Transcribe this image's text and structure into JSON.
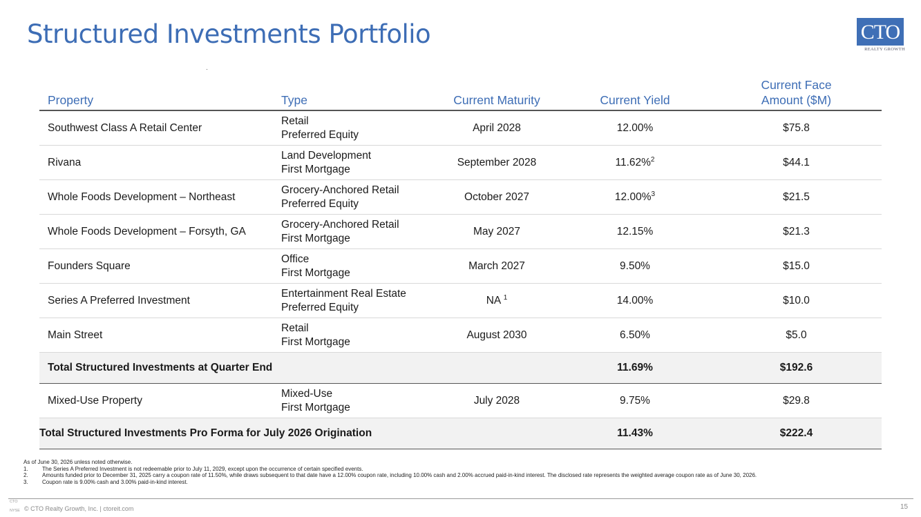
{
  "title": "Structured Investments Portfolio",
  "logo": {
    "main": "CTO",
    "sub": "REALTY GROWTH"
  },
  "table": {
    "headers": {
      "property": "Property",
      "type": "Type",
      "maturity": "Current Maturity",
      "yield": "Current Yield",
      "face_line1": "Current Face",
      "face_line2": "Amount ($M)"
    },
    "rows": [
      {
        "property": "Southwest Class A Retail Center",
        "type1": "Retail",
        "type2": "Preferred Equity",
        "maturity": "April 2028",
        "maturity_sup": "",
        "yield": "12.00%",
        "yield_sup": "",
        "face": "$75.8"
      },
      {
        "property": "Rivana",
        "type1": "Land Development",
        "type2": "First Mortgage",
        "maturity": "September 2028",
        "maturity_sup": "",
        "yield": "11.62%",
        "yield_sup": "2",
        "face": "$44.1"
      },
      {
        "property": "Whole Foods Development – Northeast",
        "type1": "Grocery-Anchored Retail",
        "type2": "Preferred Equity",
        "maturity": "October 2027",
        "maturity_sup": "",
        "yield": "12.00%",
        "yield_sup": "3",
        "face": "$21.5"
      },
      {
        "property": "Whole Foods Development – Forsyth, GA",
        "type1": "Grocery-Anchored Retail",
        "type2": "First Mortgage",
        "maturity": "May 2027",
        "maturity_sup": "",
        "yield": "12.15%",
        "yield_sup": "",
        "face": "$21.3"
      },
      {
        "property": "Founders Square",
        "type1": "Office",
        "type2": "First Mortgage",
        "maturity": "March 2027",
        "maturity_sup": "",
        "yield": "9.50%",
        "yield_sup": "",
        "face": "$15.0"
      },
      {
        "property": "Series A Preferred Investment",
        "type1": "Entertainment Real Estate",
        "type2": "Preferred Equity",
        "maturity": "NA ",
        "maturity_sup": "1",
        "yield": "14.00%",
        "yield_sup": "",
        "face": "$10.0"
      },
      {
        "property": "Main Street",
        "type1": "Retail",
        "type2": "First Mortgage",
        "maturity": "August 2030",
        "maturity_sup": "",
        "yield": "6.50%",
        "yield_sup": "",
        "face": "$5.0"
      }
    ],
    "total_quarter": {
      "label": "Total Structured Investments at Quarter End",
      "yield": "11.69%",
      "face": "$192.6"
    },
    "extra_row": {
      "property": "Mixed-Use Property",
      "type1": "Mixed-Use",
      "type2": "First Mortgage",
      "maturity": "July 2028",
      "yield": "9.75%",
      "face": "$29.8"
    },
    "total_proforma": {
      "label": "Total Structured Investments Pro Forma for July 2026 Origination",
      "yield": "11.43%",
      "face": "$222.4"
    }
  },
  "notes": {
    "intro": "As of June 30, 2026 unless noted otherwise.",
    "items": [
      {
        "num": "1.",
        "text": "The Series A Preferred Investment is not redeemable prior to July 11, 2029, except upon the occurrence of certain specified events."
      },
      {
        "num": "2.",
        "text": "Amounts funded prior to December 31, 2025 carry a coupon rate of 11.50%, while draws subsequent to that date have a 12.00% coupon rate, including 10.00% cash and 2.00% accrued paid-in-kind interest. The disclosed rate represents the weighted average coupon rate as of June 30, 2026."
      },
      {
        "num": "3.",
        "text": "Coupon rate is 9.00% cash and 3.00% paid-in-kind interest."
      }
    ]
  },
  "footer": {
    "text": "© CTO Realty Growth, Inc. | ctoreit.com",
    "exchange": "NYSE",
    "ticker": "CTO",
    "page": "15"
  }
}
